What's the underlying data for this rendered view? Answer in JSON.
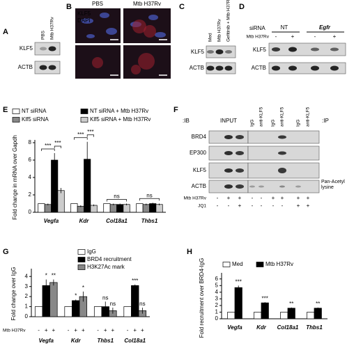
{
  "panels": {
    "A": {
      "label": "A",
      "lanes": [
        "PBS",
        "Mtb H37Rv"
      ],
      "rows": [
        "KLF5",
        "ACTB"
      ]
    },
    "B": {
      "label": "B",
      "columns": [
        "PBS",
        "Mtb H37Rv"
      ],
      "stains": [
        "KLF5",
        "DAPI"
      ]
    },
    "C": {
      "label": "C",
      "lanes": [
        "Med",
        "Mtb H37Rv",
        "Gefitinib + Mtb H37Rv"
      ],
      "rows": [
        "KLF5",
        "ACTB"
      ]
    },
    "D": {
      "label": "D",
      "siRNA_label": "siRNA",
      "groups": [
        "NT",
        "Egfr"
      ],
      "mtb_label": "Mtb H37Rv",
      "signs": [
        "-",
        "+",
        "-",
        "+"
      ],
      "rows": [
        "KLF5",
        "ACTB"
      ]
    },
    "F": {
      "label": "F",
      "ib_label": ":IB",
      "input_label": "INPUT",
      "ip_lanes": [
        "IgG",
        "anti-KLF5",
        "IgG",
        "anti-KLF5",
        "IgG",
        "anti-KLF5"
      ],
      "ip_label": ":IP",
      "rows": [
        "BRD4",
        "EP300",
        "KLF5",
        "ACTB"
      ],
      "side_label": "Pan-Acetyl lysine",
      "mtb_label": "Mtb H37Rv",
      "mtb_signs": [
        "-",
        "+",
        "+",
        "-",
        "-",
        "+",
        "+",
        "+",
        "+"
      ],
      "jq1_label": "JQ1",
      "jq1_signs": [
        "-",
        "-",
        "+",
        "-",
        "-",
        "-",
        "-",
        "+",
        "+"
      ]
    }
  },
  "chart_data": [
    {
      "type": "bar",
      "panel": "E",
      "y_label": "Fold change in mRNA over Gapdh",
      "categories": [
        "Vegfa",
        "Kdr",
        "Col18a1",
        "Thbs1"
      ],
      "series": [
        {
          "name": "NT siRNA",
          "color": "#ffffff",
          "values": [
            1,
            1,
            1,
            1
          ],
          "errors": [
            0,
            0,
            0,
            0
          ]
        },
        {
          "name": "Klf5 siRNA",
          "color": "#888888",
          "values": [
            0.9,
            0.7,
            0.9,
            0.9
          ],
          "errors": [
            0.1,
            0.1,
            0.1,
            0.1
          ]
        },
        {
          "name": "NT siRNA + Mtb H37Rv",
          "color": "#000000",
          "values": [
            6.0,
            6.1,
            0.9,
            1.0
          ],
          "errors": [
            0.8,
            2.0,
            0.1,
            0.1
          ]
        },
        {
          "name": "Klf5 siRNA + Mtb H37Rv",
          "color": "#cccccc",
          "values": [
            2.5,
            0.8,
            0.9,
            0.9
          ],
          "errors": [
            0.3,
            0.1,
            0.1,
            0.1
          ]
        }
      ],
      "brackets": [
        "***",
        "***",
        "***",
        "***",
        "ns",
        "ns"
      ],
      "ylim": [
        0,
        8
      ],
      "yticks": [
        0,
        2,
        4,
        6,
        8
      ]
    },
    {
      "type": "bar",
      "panel": "G",
      "y_label": "Fold change over IgG",
      "categories": [
        "Vegfa",
        "Kdr",
        "Thbs1",
        "Col18a1"
      ],
      "series": [
        {
          "name": "IgG",
          "color": "#ffffff",
          "values": [
            1,
            1,
            1,
            1
          ],
          "errors": [
            0,
            0,
            0,
            0
          ]
        },
        {
          "name": "BRD4 recruitment",
          "color": "#000000",
          "values": [
            3.1,
            1.6,
            1.0,
            3.1
          ],
          "errors": [
            0.6,
            0.1,
            0.5,
            0.1
          ],
          "sig": [
            "*",
            "*",
            "ns",
            "***"
          ]
        },
        {
          "name": "H3K27Ac mark",
          "color": "#888888",
          "values": [
            3.4,
            2.0,
            0.6,
            0.6
          ],
          "errors": [
            0.3,
            0.5,
            0.3,
            0.3
          ],
          "sig": [
            "**",
            "*",
            "ns",
            "ns"
          ]
        }
      ],
      "row_label": "Mtb H37Rv",
      "row_signs": [
        "-",
        "+",
        "+"
      ],
      "ylim": [
        0,
        4.5
      ],
      "yticks": [
        0,
        1,
        2,
        3,
        4
      ]
    },
    {
      "type": "bar",
      "panel": "H",
      "y_label": "Fold recruitment over BRD4-IgG",
      "categories": [
        "Vegfa",
        "Kdr",
        "Col18a1",
        "Thbs1"
      ],
      "series": [
        {
          "name": "Med",
          "color": "#ffffff",
          "values": [
            1,
            1,
            1,
            1
          ],
          "errors": [
            0,
            0,
            0,
            0
          ]
        },
        {
          "name": "Mtb H37Rv",
          "color": "#000000",
          "values": [
            4.7,
            2.4,
            1.6,
            1.6
          ],
          "errors": [
            0.3,
            0.1,
            0.1,
            0.1
          ],
          "sig": [
            "***",
            "***",
            "**",
            "**"
          ]
        }
      ],
      "ylim": [
        0,
        6.5
      ],
      "yticks": [
        0,
        1,
        2,
        3,
        4,
        5,
        6
      ]
    }
  ]
}
